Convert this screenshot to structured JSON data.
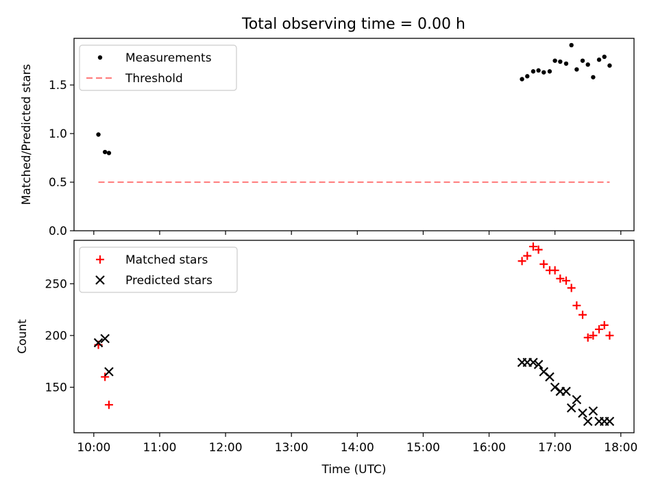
{
  "title": "Total observing time = 0.00 h",
  "chart_data": [
    {
      "type": "scatter",
      "ylabel": "Matched/Predicted stars",
      "ylim": [
        0,
        1.98
      ],
      "yticks": [
        0.0,
        0.5,
        1.0,
        1.5
      ],
      "ytick_labels": [
        "0.0",
        "0.5",
        "1.0",
        "1.5"
      ],
      "xlim": [
        9.7,
        18.2
      ],
      "xticks": [
        10,
        11,
        12,
        13,
        14,
        15,
        16,
        17,
        18
      ],
      "xtick_labels_shown": false,
      "legend_position": "top-left",
      "series": [
        {
          "name": "Measurements",
          "marker": "dot",
          "color": "#000000",
          "x": [
            10.07,
            10.17,
            10.23,
            16.5,
            16.58,
            16.67,
            16.75,
            16.83,
            16.92,
            17.0,
            17.08,
            17.17,
            17.25,
            17.33,
            17.42,
            17.5,
            17.58,
            17.67,
            17.75,
            17.83
          ],
          "y": [
            0.99,
            0.81,
            0.8,
            1.56,
            1.59,
            1.64,
            1.65,
            1.63,
            1.64,
            1.75,
            1.74,
            1.72,
            1.91,
            1.66,
            1.75,
            1.71,
            1.58,
            1.76,
            1.79,
            1.7
          ]
        },
        {
          "name": "Threshold",
          "style": "dashed-line",
          "color": "#ff7f7f",
          "x": [
            10.07,
            17.83
          ],
          "y": [
            0.5,
            0.5
          ]
        }
      ]
    },
    {
      "type": "scatter",
      "xlabel": "Time (UTC)",
      "ylabel": "Count",
      "ylim": [
        106,
        292
      ],
      "yticks": [
        150,
        200,
        250
      ],
      "ytick_labels": [
        "150",
        "200",
        "250"
      ],
      "xlim": [
        9.7,
        18.2
      ],
      "xticks": [
        10,
        11,
        12,
        13,
        14,
        15,
        16,
        17,
        18
      ],
      "xtick_labels": [
        "10:00",
        "11:00",
        "12:00",
        "13:00",
        "14:00",
        "15:00",
        "16:00",
        "17:00",
        "18:00"
      ],
      "legend_position": "top-left",
      "series": [
        {
          "name": "Matched stars",
          "marker": "plus",
          "color": "#ff0000",
          "x": [
            10.07,
            10.17,
            10.23,
            16.5,
            16.58,
            16.67,
            16.75,
            16.83,
            16.92,
            17.0,
            17.08,
            17.17,
            17.25,
            17.33,
            17.42,
            17.5,
            17.58,
            17.67,
            17.75,
            17.83
          ],
          "y": [
            191,
            160,
            133,
            272,
            277,
            286,
            283,
            269,
            263,
            263,
            255,
            253,
            246,
            229,
            220,
            198,
            200,
            206,
            210,
            200
          ]
        },
        {
          "name": "Predicted stars",
          "marker": "x",
          "color": "#000000",
          "x": [
            10.07,
            10.17,
            10.23,
            16.5,
            16.58,
            16.67,
            16.75,
            16.83,
            16.92,
            17.0,
            17.08,
            17.17,
            17.25,
            17.33,
            17.42,
            17.5,
            17.58,
            17.67,
            17.75,
            17.83
          ],
          "y": [
            193,
            197,
            165,
            174,
            174,
            174,
            172,
            165,
            160,
            150,
            146,
            146,
            130,
            138,
            125,
            117,
            127,
            117,
            117,
            117
          ]
        }
      ]
    }
  ]
}
